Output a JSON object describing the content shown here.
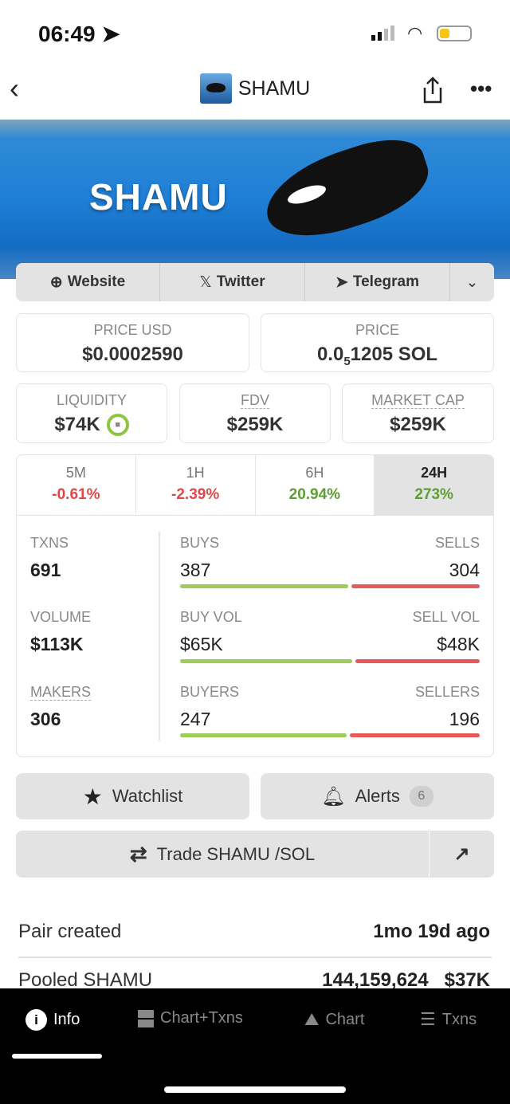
{
  "status_bar": {
    "time": "06:49"
  },
  "header": {
    "title": "SHAMU"
  },
  "banner": {
    "text": "SHAMU"
  },
  "links": [
    {
      "label": "Website",
      "icon": "globe-icon"
    },
    {
      "label": "Twitter",
      "icon": "x-icon"
    },
    {
      "label": "Telegram",
      "icon": "telegram-icon"
    }
  ],
  "price": {
    "usd_label": "PRICE USD",
    "usd_value": "$0.0002590",
    "native_label": "PRICE",
    "native_prefix": "0.0",
    "native_sub": "5",
    "native_rest": "1205 SOL"
  },
  "metrics": {
    "liquidity_label": "LIQUIDITY",
    "liquidity_value": "$74K",
    "fdv_label": "FDV",
    "fdv_value": "$259K",
    "mcap_label": "MARKET CAP",
    "mcap_value": "$259K"
  },
  "timeframes": [
    {
      "label": "5M",
      "value": "-0.61%"
    },
    {
      "label": "1H",
      "value": "-2.39%"
    },
    {
      "label": "6H",
      "value": "20.94%"
    },
    {
      "label": "24H",
      "value": "273%"
    }
  ],
  "stats": {
    "txns_label": "TXNS",
    "txns": "691",
    "buys_label": "BUYS",
    "buys": "387",
    "sells_label": "SELLS",
    "sells": "304",
    "buys_fraction": 0.56,
    "volume_label": "VOLUME",
    "volume": "$113K",
    "buyvol_label": "BUY VOL",
    "buyvol": "$65K",
    "sellvol_label": "SELL VOL",
    "sellvol": "$48K",
    "buyvol_fraction": 0.575,
    "makers_label": "MAKERS",
    "makers": "306",
    "buyers_label": "BUYERS",
    "buyers": "247",
    "sellers_label": "SELLERS",
    "sellers": "196",
    "buyers_fraction": 0.557
  },
  "actions": {
    "watchlist": "Watchlist",
    "alerts": "Alerts",
    "alerts_count": "6",
    "trade": "Trade SHAMU /SOL"
  },
  "info": {
    "pair_created_label": "Pair created",
    "pair_created_value": "1mo 19d ago",
    "pooled_label": "Pooled SHAMU",
    "pooled_amount": "144,159,624",
    "pooled_usd": "$37K"
  },
  "bottom_tabs": [
    {
      "label": "Info"
    },
    {
      "label": "Chart+Txns"
    },
    {
      "label": "Chart"
    },
    {
      "label": "Txns"
    }
  ],
  "colors": {
    "buy": "#9ccc5a",
    "sell": "#e85a5a",
    "positive": "#5e9e35",
    "negative": "#e04848"
  }
}
